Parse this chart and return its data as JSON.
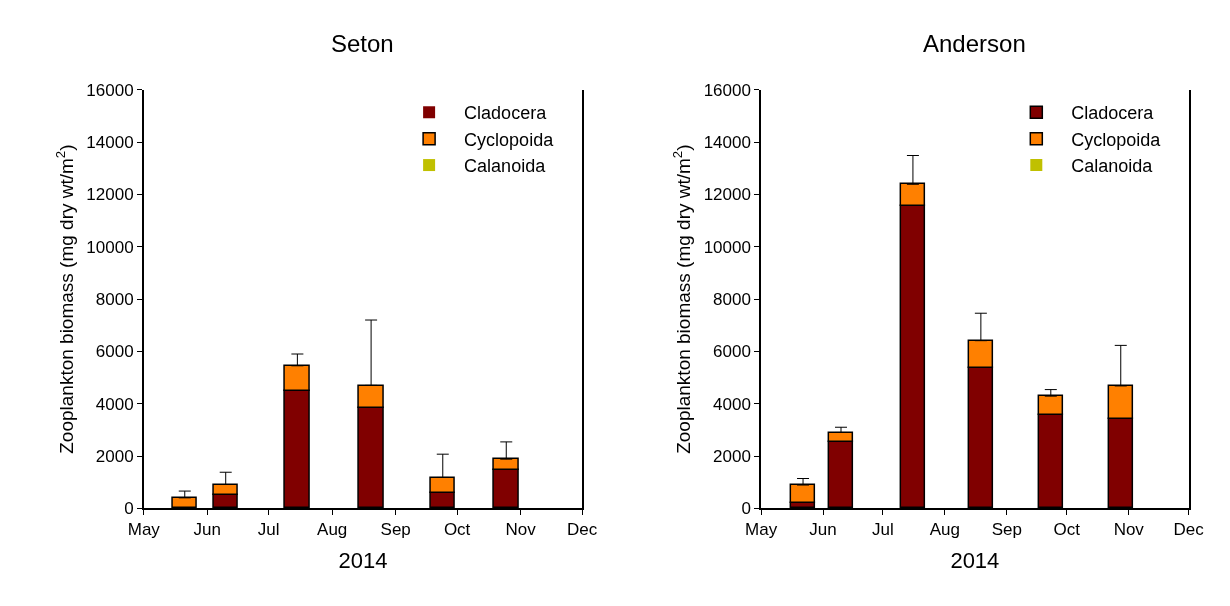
{
  "chart_data": [
    {
      "type": "bar",
      "title": "Seton",
      "xlabel": "2014",
      "ylabel": "Zooplankton biomass (mg dry wt/m$^{2}$)",
      "stacked": true,
      "legend": "top right",
      "x": [
        "2014-05-21",
        "2014-06-10",
        "2014-07-15",
        "2014-08-20",
        "2014-09-24",
        "2014-10-25"
      ],
      "xlim": [
        "2014-05-01",
        "2014-12-01"
      ],
      "xticks": [
        {
          "value": "2014-05-01",
          "label": "May"
        },
        {
          "value": "2014-06-01",
          "label": "Jun"
        },
        {
          "value": "2014-07-01",
          "label": "Jul"
        },
        {
          "value": "2014-08-01",
          "label": "Aug"
        },
        {
          "value": "2014-09-01",
          "label": "Sep"
        },
        {
          "value": "2014-10-01",
          "label": "Oct"
        },
        {
          "value": "2014-11-01",
          "label": "Nov"
        },
        {
          "value": "2014-12-01",
          "label": "Dec"
        }
      ],
      "ylim": [
        0,
        16000
      ],
      "yticks": [
        0,
        2000,
        4000,
        6000,
        8000,
        10000,
        12000,
        14000,
        16000
      ],
      "series": [
        {
          "name": "Cladocera",
          "color": "#800000",
          "values": [
            0,
            520,
            4500,
            3830,
            580,
            1480
          ]
        },
        {
          "name": "Cyclopoida",
          "color": "#ff8000",
          "values": [
            400,
            390,
            950,
            870,
            600,
            400
          ],
          "errors": [
            [
              400,
              660
            ],
            [
              910,
              1380
            ],
            [
              5450,
              5900
            ],
            [
              4700,
              7200
            ],
            [
              1180,
              2070
            ],
            [
              1880,
              2540
            ]
          ]
        },
        {
          "name": "Calanoida",
          "color": "#c0c000",
          "values": [
            0,
            0,
            0,
            0,
            0,
            0
          ]
        }
      ]
    },
    {
      "type": "bar",
      "title": "Anderson",
      "xlabel": "2014",
      "ylabel": "Zooplankton biomass (mg dry wt/m$^{2}$)",
      "stacked": true,
      "legend": "top right",
      "x": [
        "2014-05-22",
        "2014-06-10",
        "2014-07-16",
        "2014-08-19",
        "2014-09-23",
        "2014-10-28"
      ],
      "xlim": [
        "2014-05-01",
        "2014-12-01"
      ],
      "xticks": [
        {
          "value": "2014-05-01",
          "label": "May"
        },
        {
          "value": "2014-06-01",
          "label": "Jun"
        },
        {
          "value": "2014-07-01",
          "label": "Jul"
        },
        {
          "value": "2014-08-01",
          "label": "Aug"
        },
        {
          "value": "2014-09-01",
          "label": "Sep"
        },
        {
          "value": "2014-10-01",
          "label": "Oct"
        },
        {
          "value": "2014-11-01",
          "label": "Nov"
        },
        {
          "value": "2014-12-01",
          "label": "Dec"
        }
      ],
      "ylim": [
        0,
        16000
      ],
      "yticks": [
        0,
        2000,
        4000,
        6000,
        8000,
        10000,
        12000,
        14000,
        16000
      ],
      "series": [
        {
          "name": "Cladocera",
          "color": "#800000",
          "values": [
            190,
            2540,
            11580,
            5370,
            3560,
            3430
          ]
        },
        {
          "name": "Cyclopoida",
          "color": "#ff8000",
          "values": [
            700,
            360,
            810,
            1040,
            730,
            1250
          ],
          "errors": [
            [
              890,
              1140
            ],
            [
              2900,
              3100
            ],
            [
              12390,
              13490
            ],
            [
              6410,
              7460
            ],
            [
              4290,
              4540
            ],
            [
              4680,
              6230
            ]
          ]
        },
        {
          "name": "Calanoida",
          "color": "#c0c000",
          "values": [
            0,
            0,
            0,
            0,
            0,
            0
          ]
        }
      ]
    }
  ]
}
